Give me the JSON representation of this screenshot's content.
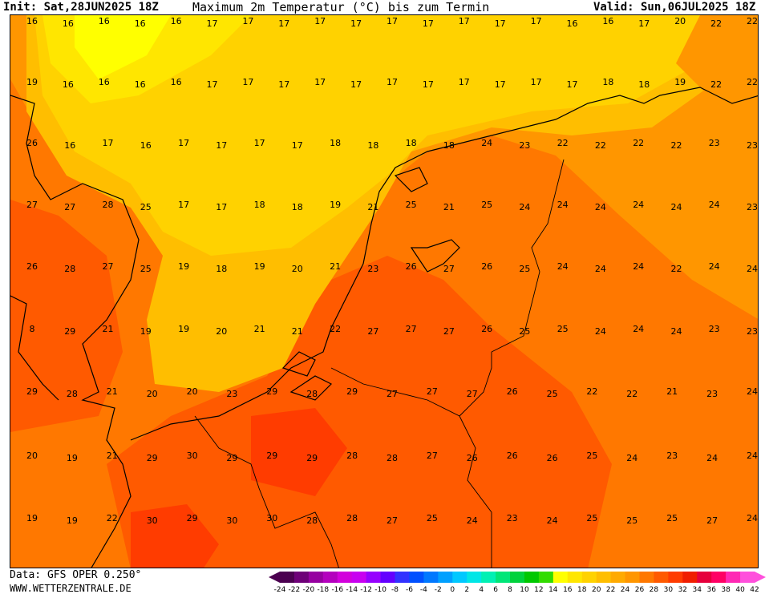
{
  "header": {
    "init": "Init: Sat,28JUN2025 18Z",
    "title": "Maximum 2m Temperatur (°C) bis zum Termin",
    "valid": "Valid: Sun,06JUL2025 18Z"
  },
  "footer": {
    "data_source": "Data: GFS OPER 0.250°",
    "website": "WWW.WETTERZENTRALE.DE"
  },
  "legend": {
    "ticks": [
      "-24",
      "-22",
      "-20",
      "-18",
      "-16",
      "-14",
      "-12",
      "-10",
      "-8",
      "-6",
      "-4",
      "-2",
      "0",
      "2",
      "4",
      "6",
      "8",
      "10",
      "12",
      "14",
      "16",
      "18",
      "20",
      "22",
      "24",
      "26",
      "28",
      "30",
      "32",
      "34",
      "36",
      "38",
      "40",
      "42"
    ],
    "colors": [
      "#4b0050",
      "#6e0078",
      "#9600a0",
      "#b400be",
      "#d200dc",
      "#c800f0",
      "#9600ff",
      "#6400ff",
      "#3232ff",
      "#0050ff",
      "#0078ff",
      "#00a0ff",
      "#00c8ff",
      "#00e6e6",
      "#00f0b4",
      "#00e678",
      "#00d23c",
      "#00c800",
      "#32dc00",
      "#ffff00",
      "#ffe600",
      "#ffd200",
      "#ffbe00",
      "#ffaa00",
      "#ff9600",
      "#ff7800",
      "#ff5a00",
      "#ff3c00",
      "#f01e00",
      "#e6003c",
      "#ff0064",
      "#ff28b4",
      "#ff50dc"
    ]
  },
  "map": {
    "rows": [
      [
        "16",
        "16",
        "16",
        "16",
        "16",
        "17",
        "17",
        "17",
        "17",
        "17",
        "17",
        "17",
        "17",
        "17",
        "17",
        "16",
        "16",
        "17",
        "20",
        "22",
        "22"
      ],
      [
        "19",
        "16",
        "16",
        "16",
        "16",
        "17",
        "17",
        "17",
        "17",
        "17",
        "17",
        "17",
        "17",
        "17",
        "17",
        "17",
        "18",
        "18",
        "19",
        "22",
        "22"
      ],
      [
        "26",
        "16",
        "17",
        "16",
        "17",
        "17",
        "17",
        "17",
        "18",
        "18",
        "18",
        "18",
        "24",
        "23",
        "22",
        "22",
        "22",
        "22",
        "23",
        "23"
      ],
      [
        "27",
        "27",
        "28",
        "25",
        "17",
        "17",
        "18",
        "18",
        "19",
        "21",
        "25",
        "21",
        "25",
        "24",
        "24",
        "24",
        "24",
        "24",
        "24",
        "23"
      ],
      [
        "26",
        "28",
        "27",
        "25",
        "19",
        "18",
        "19",
        "20",
        "21",
        "23",
        "26",
        "27",
        "26",
        "25",
        "24",
        "24",
        "24",
        "22",
        "24",
        "24"
      ],
      [
        "8",
        "29",
        "21",
        "19",
        "19",
        "20",
        "21",
        "21",
        "22",
        "27",
        "27",
        "27",
        "26",
        "25",
        "25",
        "24",
        "24",
        "24",
        "23",
        "23"
      ],
      [
        "29",
        "28",
        "21",
        "20",
        "20",
        "23",
        "29",
        "28",
        "29",
        "27",
        "27",
        "27",
        "26",
        "25",
        "22",
        "22",
        "21",
        "23",
        "24"
      ],
      [
        "20",
        "19",
        "21",
        "29",
        "30",
        "29",
        "29",
        "29",
        "28",
        "28",
        "27",
        "26",
        "26",
        "26",
        "25",
        "24",
        "23",
        "24",
        "24"
      ],
      [
        "19",
        "19",
        "22",
        "30",
        "29",
        "30",
        "30",
        "28",
        "28",
        "27",
        "25",
        "24",
        "23",
        "24",
        "25",
        "25",
        "25",
        "27",
        "24"
      ]
    ]
  }
}
